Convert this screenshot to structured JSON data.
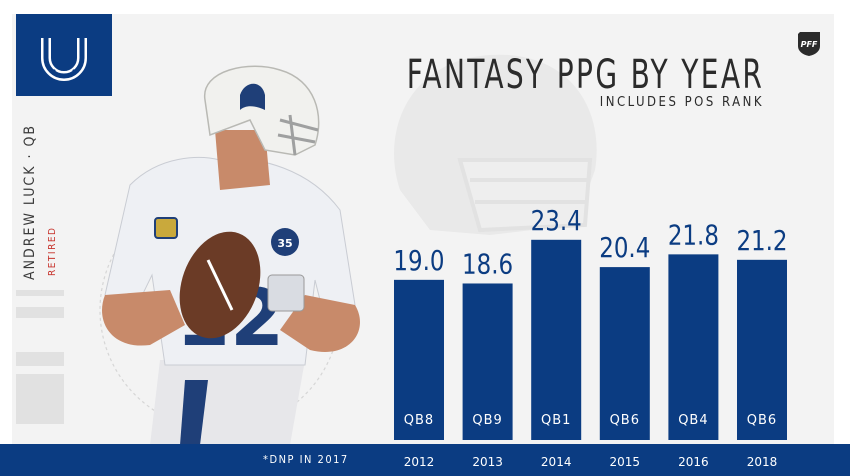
{
  "header": {
    "title": "FANTASY PPG BY YEAR",
    "subtitle": "INCLUDES POS RANK"
  },
  "player": {
    "name": "ANDREW LUCK · QB",
    "status": "RETIRED"
  },
  "footer": {
    "note": "*DNP IN 2017"
  },
  "colors": {
    "bar": "#0b3c82",
    "footer": "#0b3c82",
    "status": "#c7342d",
    "text": "#2b2b2b",
    "panel": "#f3f3f3"
  },
  "icons": {
    "team_logo": "horseshoe-icon",
    "brand_logo": "pff-logo-icon"
  },
  "chart_data": {
    "type": "bar",
    "title": "FANTASY PPG BY YEAR",
    "subtitle": "INCLUDES POS RANK",
    "categories": [
      "2012",
      "2013",
      "2014",
      "2015",
      "2016",
      "2018"
    ],
    "values": [
      19.0,
      18.6,
      23.4,
      20.4,
      21.8,
      21.2
    ],
    "value_labels": [
      "19.0",
      "18.6",
      "23.4",
      "20.4",
      "21.8",
      "21.2"
    ],
    "ranks": [
      "QB8",
      "QB9",
      "QB1",
      "QB6",
      "QB4",
      "QB6"
    ],
    "xlabel": "",
    "ylabel": "",
    "grid": false,
    "legend": "none"
  }
}
